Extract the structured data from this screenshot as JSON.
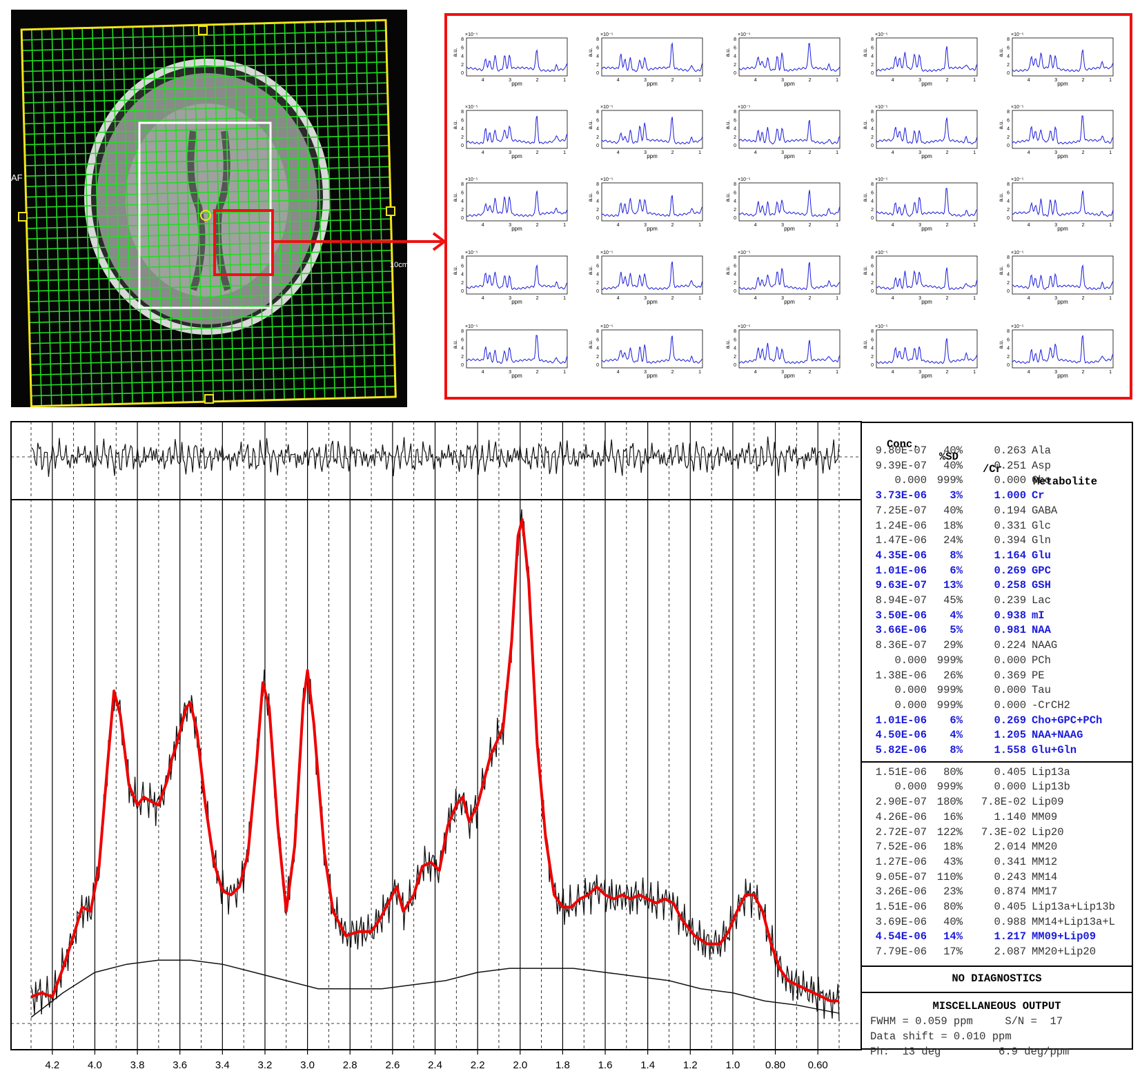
{
  "mri_panel": {
    "side_label_left": "AF",
    "side_label_right": "10cm"
  },
  "mini_spectra": {
    "ylabel": "a.u.",
    "xlabel": "ppm",
    "exponent": "×10⁻⁵",
    "y_ticks": [
      "8",
      "6",
      "4",
      "2",
      "0"
    ],
    "x_ticks": [
      "4",
      "3",
      "2",
      "1"
    ]
  },
  "chart_data": {
    "type": "line",
    "title": "",
    "xlabel": "",
    "ylabel": "",
    "x_reversed": true,
    "xlim": [
      4.3,
      0.5
    ],
    "x_ticks": [
      "4.2",
      "4.0",
      "3.8",
      "3.6",
      "3.4",
      "3.2",
      "3.0",
      "2.8",
      "2.6",
      "2.4",
      "2.2",
      "2.0",
      "1.8",
      "1.6",
      "1.4",
      "1.2",
      "1.0",
      "0.80",
      "0.60"
    ],
    "x_tick_values": [
      4.2,
      4.0,
      3.8,
      3.6,
      3.4,
      3.2,
      3.0,
      2.8,
      2.6,
      2.4,
      2.2,
      2.0,
      1.8,
      1.6,
      1.4,
      1.2,
      1.0,
      0.8,
      0.6
    ],
    "fit_color": "#ee0000",
    "data_color": "#111111",
    "fit_points": [
      [
        4.3,
        0.03
      ],
      [
        4.25,
        0.04
      ],
      [
        4.2,
        0.03
      ],
      [
        4.15,
        0.1
      ],
      [
        4.1,
        0.18
      ],
      [
        4.06,
        0.25
      ],
      [
        4.02,
        0.24
      ],
      [
        3.98,
        0.35
      ],
      [
        3.94,
        0.6
      ],
      [
        3.91,
        0.78
      ],
      [
        3.88,
        0.72
      ],
      [
        3.84,
        0.55
      ],
      [
        3.8,
        0.5
      ],
      [
        3.77,
        0.52
      ],
      [
        3.74,
        0.51
      ],
      [
        3.7,
        0.5
      ],
      [
        3.66,
        0.56
      ],
      [
        3.64,
        0.61
      ],
      [
        3.62,
        0.64
      ],
      [
        3.6,
        0.68
      ],
      [
        3.57,
        0.74
      ],
      [
        3.55,
        0.75
      ],
      [
        3.52,
        0.68
      ],
      [
        3.48,
        0.5
      ],
      [
        3.44,
        0.36
      ],
      [
        3.4,
        0.29
      ],
      [
        3.36,
        0.28
      ],
      [
        3.32,
        0.3
      ],
      [
        3.28,
        0.38
      ],
      [
        3.24,
        0.6
      ],
      [
        3.21,
        0.8
      ],
      [
        3.18,
        0.74
      ],
      [
        3.14,
        0.45
      ],
      [
        3.1,
        0.24
      ],
      [
        3.06,
        0.4
      ],
      [
        3.02,
        0.75
      ],
      [
        3.0,
        0.83
      ],
      [
        2.97,
        0.7
      ],
      [
        2.92,
        0.38
      ],
      [
        2.88,
        0.24
      ],
      [
        2.82,
        0.18
      ],
      [
        2.76,
        0.19
      ],
      [
        2.7,
        0.19
      ],
      [
        2.66,
        0.22
      ],
      [
        2.62,
        0.26
      ],
      [
        2.58,
        0.3
      ],
      [
        2.55,
        0.24
      ],
      [
        2.5,
        0.28
      ],
      [
        2.46,
        0.35
      ],
      [
        2.42,
        0.36
      ],
      [
        2.38,
        0.34
      ],
      [
        2.34,
        0.45
      ],
      [
        2.3,
        0.5
      ],
      [
        2.27,
        0.52
      ],
      [
        2.24,
        0.46
      ],
      [
        2.2,
        0.5
      ],
      [
        2.14,
        0.62
      ],
      [
        2.08,
        0.69
      ],
      [
        2.04,
        0.9
      ],
      [
        2.01,
        1.16
      ],
      [
        1.99,
        1.2
      ],
      [
        1.96,
        1.05
      ],
      [
        1.92,
        0.65
      ],
      [
        1.88,
        0.42
      ],
      [
        1.84,
        0.28
      ],
      [
        1.8,
        0.25
      ],
      [
        1.76,
        0.25
      ],
      [
        1.72,
        0.27
      ],
      [
        1.68,
        0.28
      ],
      [
        1.64,
        0.3
      ],
      [
        1.6,
        0.28
      ],
      [
        1.56,
        0.27
      ],
      [
        1.52,
        0.28
      ],
      [
        1.48,
        0.27
      ],
      [
        1.44,
        0.28
      ],
      [
        1.4,
        0.27
      ],
      [
        1.36,
        0.26
      ],
      [
        1.32,
        0.27
      ],
      [
        1.28,
        0.26
      ],
      [
        1.24,
        0.22
      ],
      [
        1.18,
        0.18
      ],
      [
        1.12,
        0.16
      ],
      [
        1.06,
        0.16
      ],
      [
        1.02,
        0.19
      ],
      [
        0.98,
        0.24
      ],
      [
        0.94,
        0.28
      ],
      [
        0.9,
        0.28
      ],
      [
        0.86,
        0.24
      ],
      [
        0.82,
        0.16
      ],
      [
        0.78,
        0.1
      ],
      [
        0.74,
        0.07
      ],
      [
        0.7,
        0.06
      ],
      [
        0.66,
        0.05
      ],
      [
        0.62,
        0.04
      ],
      [
        0.58,
        0.03
      ],
      [
        0.54,
        0.02
      ],
      [
        0.5,
        0.02
      ]
    ],
    "baseline_points": [
      [
        4.3,
        -0.02
      ],
      [
        4.15,
        0.04
      ],
      [
        4.0,
        0.09
      ],
      [
        3.85,
        0.11
      ],
      [
        3.7,
        0.12
      ],
      [
        3.55,
        0.12
      ],
      [
        3.4,
        0.11
      ],
      [
        3.25,
        0.09
      ],
      [
        3.1,
        0.07
      ],
      [
        2.95,
        0.05
      ],
      [
        2.8,
        0.05
      ],
      [
        2.65,
        0.05
      ],
      [
        2.5,
        0.06
      ],
      [
        2.35,
        0.07
      ],
      [
        2.2,
        0.09
      ],
      [
        2.05,
        0.1
      ],
      [
        1.9,
        0.1
      ],
      [
        1.75,
        0.1
      ],
      [
        1.6,
        0.09
      ],
      [
        1.45,
        0.08
      ],
      [
        1.3,
        0.07
      ],
      [
        1.15,
        0.05
      ],
      [
        1.0,
        0.04
      ],
      [
        0.85,
        0.02
      ],
      [
        0.7,
        0.01
      ],
      [
        0.6,
        0.0
      ],
      [
        0.5,
        -0.01
      ]
    ]
  },
  "table": {
    "headers": [
      "Conc.",
      "%SD",
      "/Cr",
      "Metabolite"
    ],
    "metabolites": [
      {
        "conc": "9.80E-07",
        "sd": "40%",
        "cr": "0.263",
        "name": "Ala",
        "hl": false
      },
      {
        "conc": "9.39E-07",
        "sd": "40%",
        "cr": "0.251",
        "name": "Asp",
        "hl": false
      },
      {
        "conc": "0.000",
        "sd": "999%",
        "cr": "0.000",
        "name": "Cho",
        "hl": false
      },
      {
        "conc": "3.73E-06",
        "sd": "3%",
        "cr": "1.000",
        "name": "Cr",
        "hl": true
      },
      {
        "conc": "7.25E-07",
        "sd": "40%",
        "cr": "0.194",
        "name": "GABA",
        "hl": false
      },
      {
        "conc": "1.24E-06",
        "sd": "18%",
        "cr": "0.331",
        "name": "Glc",
        "hl": false
      },
      {
        "conc": "1.47E-06",
        "sd": "24%",
        "cr": "0.394",
        "name": "Gln",
        "hl": false
      },
      {
        "conc": "4.35E-06",
        "sd": "8%",
        "cr": "1.164",
        "name": "Glu",
        "hl": true
      },
      {
        "conc": "1.01E-06",
        "sd": "6%",
        "cr": "0.269",
        "name": "GPC",
        "hl": true
      },
      {
        "conc": "9.63E-07",
        "sd": "13%",
        "cr": "0.258",
        "name": "GSH",
        "hl": true
      },
      {
        "conc": "8.94E-07",
        "sd": "45%",
        "cr": "0.239",
        "name": "Lac",
        "hl": false
      },
      {
        "conc": "3.50E-06",
        "sd": "4%",
        "cr": "0.938",
        "name": "mI",
        "hl": true
      },
      {
        "conc": "3.66E-06",
        "sd": "5%",
        "cr": "0.981",
        "name": "NAA",
        "hl": true
      },
      {
        "conc": "8.36E-07",
        "sd": "29%",
        "cr": "0.224",
        "name": "NAAG",
        "hl": false
      },
      {
        "conc": "0.000",
        "sd": "999%",
        "cr": "0.000",
        "name": "PCh",
        "hl": false
      },
      {
        "conc": "1.38E-06",
        "sd": "26%",
        "cr": "0.369",
        "name": "PE",
        "hl": false
      },
      {
        "conc": "0.000",
        "sd": "999%",
        "cr": "0.000",
        "name": "Tau",
        "hl": false
      },
      {
        "conc": "0.000",
        "sd": "999%",
        "cr": "0.000",
        "name": "-CrCH2",
        "hl": false
      },
      {
        "conc": "1.01E-06",
        "sd": "6%",
        "cr": "0.269",
        "name": "Cho+GPC+PCh",
        "hl": true
      },
      {
        "conc": "4.50E-06",
        "sd": "4%",
        "cr": "1.205",
        "name": "NAA+NAAG",
        "hl": true
      },
      {
        "conc": "5.82E-06",
        "sd": "8%",
        "cr": "1.558",
        "name": "Glu+Gln",
        "hl": true
      }
    ],
    "lipids": [
      {
        "conc": "1.51E-06",
        "sd": "80%",
        "cr": "0.405",
        "name": "Lip13a",
        "hl": false
      },
      {
        "conc": "0.000",
        "sd": "999%",
        "cr": "0.000",
        "name": "Lip13b",
        "hl": false
      },
      {
        "conc": "2.90E-07",
        "sd": "180%",
        "cr": "7.8E-02",
        "name": "Lip09",
        "hl": false
      },
      {
        "conc": "4.26E-06",
        "sd": "16%",
        "cr": "1.140",
        "name": "MM09",
        "hl": false
      },
      {
        "conc": "2.72E-07",
        "sd": "122%",
        "cr": "7.3E-02",
        "name": "Lip20",
        "hl": false
      },
      {
        "conc": "7.52E-06",
        "sd": "18%",
        "cr": "2.014",
        "name": "MM20",
        "hl": false
      },
      {
        "conc": "1.27E-06",
        "sd": "43%",
        "cr": "0.341",
        "name": "MM12",
        "hl": false
      },
      {
        "conc": "9.05E-07",
        "sd": "110%",
        "cr": "0.243",
        "name": "MM14",
        "hl": false
      },
      {
        "conc": "3.26E-06",
        "sd": "23%",
        "cr": "0.874",
        "name": "MM17",
        "hl": false
      },
      {
        "conc": "1.51E-06",
        "sd": "80%",
        "cr": "0.405",
        "name": "Lip13a+Lip13b",
        "hl": false
      },
      {
        "conc": "3.69E-06",
        "sd": "40%",
        "cr": "0.988",
        "name": "MM14+Lip13a+L",
        "hl": false
      },
      {
        "conc": "4.54E-06",
        "sd": "14%",
        "cr": "1.217",
        "name": "MM09+Lip09",
        "hl": true
      },
      {
        "conc": "7.79E-06",
        "sd": "17%",
        "cr": "2.087",
        "name": "MM20+Lip20",
        "hl": false
      }
    ],
    "diagnostics": "NO DIAGNOSTICS",
    "misc_title": "MISCELLANEOUS OUTPUT",
    "misc_lines": [
      "FWHM = 0.059 ppm     S/N =  17",
      "Data shift = 0.010 ppm",
      "Ph:  13 deg         6.9 deg/ppm"
    ]
  }
}
